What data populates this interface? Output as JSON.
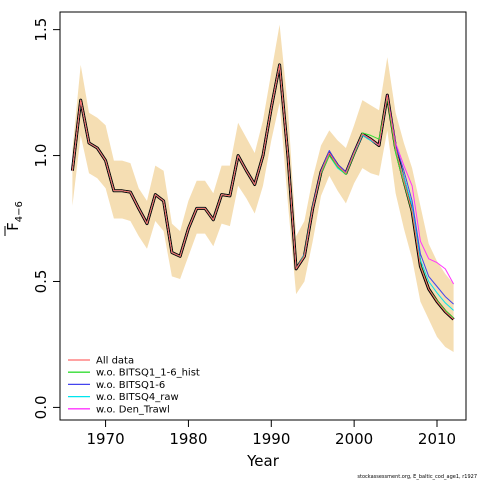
{
  "chart_data": {
    "type": "line",
    "title": "",
    "xlabel": "Year",
    "ylabel": "F̄4−6",
    "ylabel_main": "F",
    "ylabel_sub": "4−6",
    "xlim": [
      1964.5,
      2013.5
    ],
    "ylim": [
      -0.05,
      1.57
    ],
    "x_ticks": [
      1970,
      1980,
      1990,
      2000,
      2010
    ],
    "x_tick_labels": [
      "1970",
      "1980",
      "1990",
      "2000",
      "2010"
    ],
    "y_ticks": [
      0.0,
      0.5,
      1.0,
      1.5
    ],
    "y_tick_labels": [
      "0.0",
      "0.5",
      "1.0",
      "1.5"
    ],
    "grid": false,
    "legend_position": "bottom-left",
    "band_color": "#f5deb3",
    "x": [
      1966,
      1967,
      1968,
      1969,
      1970,
      1971,
      1972,
      1973,
      1974,
      1975,
      1976,
      1977,
      1978,
      1979,
      1980,
      1981,
      1982,
      1983,
      1984,
      1985,
      1986,
      1987,
      1988,
      1989,
      1990,
      1991,
      1992,
      1993,
      1994,
      1995,
      1996,
      1997,
      1998,
      1999,
      2000,
      2001,
      2002,
      2003,
      2004,
      2005,
      2006,
      2007,
      2008,
      2009,
      2010,
      2011,
      2012
    ],
    "band": {
      "upper": [
        1.02,
        1.36,
        1.17,
        1.15,
        1.12,
        0.98,
        0.98,
        0.97,
        0.87,
        0.82,
        0.96,
        0.94,
        0.73,
        0.7,
        0.82,
        0.9,
        0.9,
        0.85,
        0.96,
        0.96,
        1.13,
        1.07,
        1.01,
        1.14,
        1.33,
        1.52,
        1.19,
        0.68,
        0.74,
        0.91,
        1.04,
        1.1,
        1.06,
        1.03,
        1.12,
        1.22,
        1.2,
        1.18,
        1.39,
        1.17,
        1.05,
        0.95,
        0.8,
        0.65,
        0.58,
        0.53,
        0.49
      ],
      "lower": [
        0.8,
        1.08,
        0.93,
        0.91,
        0.87,
        0.75,
        0.75,
        0.74,
        0.68,
        0.63,
        0.74,
        0.7,
        0.52,
        0.51,
        0.6,
        0.69,
        0.69,
        0.64,
        0.73,
        0.72,
        0.88,
        0.83,
        0.77,
        0.88,
        1.06,
        1.21,
        0.81,
        0.45,
        0.5,
        0.66,
        0.84,
        0.92,
        0.86,
        0.81,
        0.89,
        0.95,
        0.93,
        0.92,
        1.1,
        0.85,
        0.71,
        0.59,
        0.42,
        0.35,
        0.28,
        0.24,
        0.22
      ]
    },
    "series": [
      {
        "name": "All data",
        "color": "#ff6b6b",
        "values": [
          0.94,
          1.22,
          1.05,
          1.03,
          0.98,
          0.86,
          0.86,
          0.855,
          0.79,
          0.73,
          0.845,
          0.82,
          0.615,
          0.6,
          0.71,
          0.79,
          0.79,
          0.745,
          0.845,
          0.84,
          1.0,
          0.94,
          0.885,
          1.0,
          1.19,
          1.36,
          1.0,
          0.55,
          0.6,
          0.79,
          0.935,
          1.01,
          0.96,
          0.93,
          1.01,
          1.085,
          1.065,
          1.04,
          1.24,
          1.03,
          0.9,
          0.78,
          0.56,
          0.47,
          0.42,
          0.38,
          0.35
        ]
      },
      {
        "name": "w.o. BITSQ1_1-6_hist",
        "color": "#33dd33",
        "values": [
          0.94,
          1.22,
          1.05,
          1.03,
          0.98,
          0.86,
          0.86,
          0.855,
          0.79,
          0.73,
          0.845,
          0.82,
          0.615,
          0.6,
          0.71,
          0.79,
          0.79,
          0.745,
          0.845,
          0.84,
          1.0,
          0.94,
          0.885,
          1.0,
          1.19,
          1.36,
          1.0,
          0.55,
          0.605,
          0.795,
          0.93,
          1.0,
          0.955,
          0.925,
          1.005,
          1.09,
          1.08,
          1.065,
          1.23,
          1.01,
          0.89,
          0.775,
          0.565,
          0.47,
          0.425,
          0.385,
          0.355
        ]
      },
      {
        "name": "w.o. BITSQ1-6",
        "color": "#4444ee",
        "values": [
          0.94,
          1.22,
          1.05,
          1.03,
          0.98,
          0.86,
          0.86,
          0.855,
          0.79,
          0.73,
          0.845,
          0.82,
          0.615,
          0.6,
          0.71,
          0.79,
          0.79,
          0.745,
          0.845,
          0.84,
          1.0,
          0.94,
          0.885,
          1.0,
          1.19,
          1.36,
          1.0,
          0.55,
          0.61,
          0.8,
          0.94,
          1.02,
          0.965,
          0.935,
          1.015,
          1.085,
          1.065,
          1.04,
          1.24,
          1.04,
          0.94,
          0.82,
          0.61,
          0.52,
          0.48,
          0.44,
          0.41
        ]
      },
      {
        "name": "w.o. BITSQ4_raw",
        "color": "#00e5ee",
        "values": [
          0.94,
          1.22,
          1.05,
          1.03,
          0.98,
          0.86,
          0.86,
          0.855,
          0.79,
          0.73,
          0.845,
          0.82,
          0.615,
          0.6,
          0.71,
          0.79,
          0.79,
          0.745,
          0.845,
          0.84,
          1.0,
          0.94,
          0.885,
          1.0,
          1.19,
          1.36,
          1.0,
          0.55,
          0.6,
          0.79,
          0.93,
          1.0,
          0.95,
          0.925,
          1.005,
          1.08,
          1.06,
          1.04,
          1.235,
          1.02,
          0.915,
          0.8,
          0.585,
          0.5,
          0.455,
          0.415,
          0.385
        ]
      },
      {
        "name": "w.o. Den_Trawl",
        "color": "#ff33ff",
        "values": [
          0.94,
          1.22,
          1.05,
          1.03,
          0.98,
          0.86,
          0.86,
          0.855,
          0.79,
          0.73,
          0.845,
          0.82,
          0.615,
          0.6,
          0.71,
          0.79,
          0.79,
          0.745,
          0.845,
          0.84,
          1.0,
          0.94,
          0.885,
          1.0,
          1.19,
          1.36,
          1.0,
          0.55,
          0.6,
          0.79,
          0.935,
          1.01,
          0.96,
          0.93,
          1.01,
          1.085,
          1.065,
          1.04,
          1.24,
          1.05,
          0.96,
          0.88,
          0.66,
          0.59,
          0.575,
          0.55,
          0.49
        ]
      }
    ]
  },
  "footer": {
    "credit": "stockassessment.org, E_baltic_cod_age1, r1927"
  }
}
